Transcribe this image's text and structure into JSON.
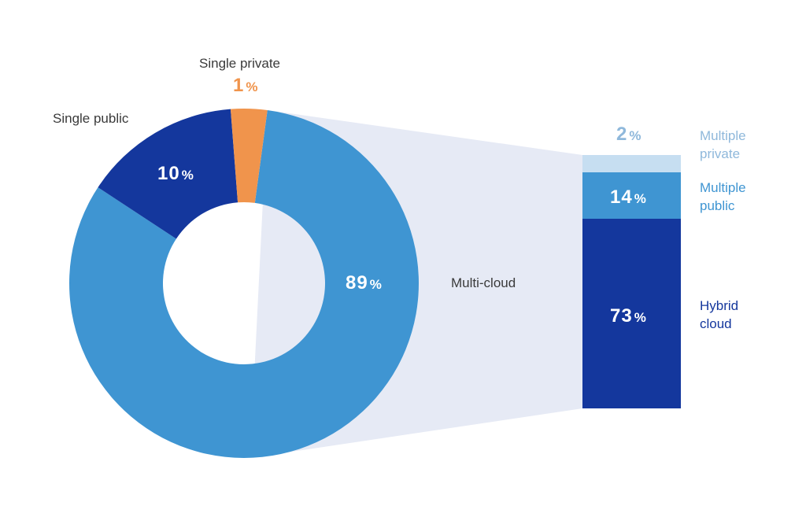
{
  "chart_data": {
    "type": "pie",
    "title": "",
    "donut": {
      "slices": [
        {
          "label": "Multi-cloud",
          "value": 89,
          "unit": "%",
          "color": "#3f95d2"
        },
        {
          "label": "Single public",
          "value": 10,
          "unit": "%",
          "color": "#14379d"
        },
        {
          "label": "Single private",
          "value": 1,
          "unit": "%",
          "color": "#f0944c"
        }
      ]
    },
    "breakdown": {
      "parent": "Multi-cloud",
      "type": "stacked-bar",
      "segments": [
        {
          "label_line1": "Multiple",
          "label_line2": "private",
          "value": 2,
          "unit": "%",
          "color": "#c6def1"
        },
        {
          "label_line1": "Multiple",
          "label_line2": "public",
          "value": 14,
          "unit": "%",
          "color": "#3f95d2"
        },
        {
          "label_line1": "Hybrid",
          "label_line2": "cloud",
          "value": 73,
          "unit": "%",
          "color": "#14379d"
        }
      ]
    },
    "connector_color": "#e6eaf5"
  }
}
